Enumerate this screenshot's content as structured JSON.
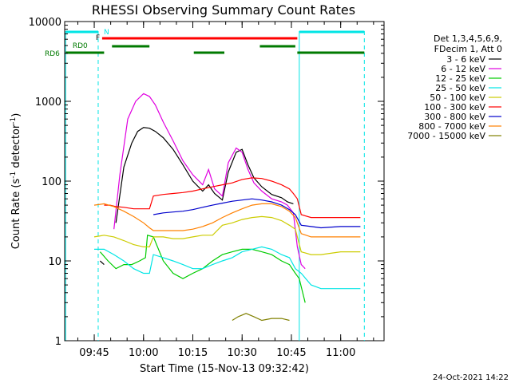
{
  "chart_data": {
    "type": "line",
    "title": "RHESSI Observing Summary Count Rates",
    "xlabel": "Start Time (15-Nov-13 09:32:42)",
    "ylabel_main": "Count Rate (s",
    "ylabel_sup1": "-1",
    "ylabel_mid": " detector",
    "ylabel_sup2": "-1",
    "ylabel_end": ")",
    "y_scale": "log",
    "ylim": [
      1,
      10000
    ],
    "xlim": [
      9.6,
      11.22
    ],
    "x_ticks": [
      {
        "label": "09:45",
        "value": 9.75
      },
      {
        "label": "10:00",
        "value": 10.0
      },
      {
        "label": "10:15",
        "value": 10.25
      },
      {
        "label": "10:30",
        "value": 10.5
      },
      {
        "label": "10:45",
        "value": 10.75
      },
      {
        "label": "11:00",
        "value": 11.0
      }
    ],
    "y_ticks": [
      {
        "label": "1",
        "value": 1
      },
      {
        "label": "10",
        "value": 10
      },
      {
        "label": "100",
        "value": 100
      },
      {
        "label": "1000",
        "value": 1000
      },
      {
        "label": "10000",
        "value": 10000
      }
    ],
    "legend_header": [
      "Det 1,3,4,5,6,9,",
      "FDecim 1, Att 0"
    ],
    "legend_placement": "right",
    "footer_date": "24-Oct-2021 14:22",
    "series": [
      {
        "name": "3 - 6 keV",
        "color": "#000000",
        "x": [
          9.6,
          9.66,
          9.72,
          9.78,
          9.8,
          9.84,
          9.86,
          9.9,
          9.94,
          9.97,
          10.0,
          10.03,
          10.06,
          10.1,
          10.15,
          10.2,
          10.25,
          10.3,
          10.33,
          10.36,
          10.4,
          10.43,
          10.47,
          10.5,
          10.53,
          10.56,
          10.6,
          10.65,
          10.7,
          10.73,
          10.76,
          10.78,
          10.79,
          10.82
        ],
        "y": [
          null,
          null,
          null,
          10,
          9,
          null,
          30,
          150,
          300,
          420,
          470,
          460,
          420,
          350,
          250,
          160,
          100,
          75,
          90,
          70,
          58,
          130,
          230,
          250,
          160,
          110,
          85,
          68,
          62,
          55,
          52,
          null,
          3,
          null
        ]
      },
      {
        "name": "6 - 12 keV",
        "color": "#e000e0",
        "x": [
          9.85,
          9.88,
          9.92,
          9.96,
          10.0,
          10.03,
          10.06,
          10.1,
          10.15,
          10.2,
          10.25,
          10.3,
          10.33,
          10.36,
          10.4,
          10.43,
          10.47,
          10.5,
          10.53,
          10.56,
          10.6,
          10.65,
          10.7,
          10.73,
          10.76,
          10.78,
          10.8,
          10.82
        ],
        "y": [
          25,
          120,
          600,
          1000,
          1250,
          1150,
          900,
          550,
          320,
          180,
          120,
          90,
          140,
          80,
          65,
          170,
          260,
          230,
          140,
          95,
          75,
          60,
          55,
          50,
          40,
          15,
          9,
          8
        ]
      },
      {
        "name": "12 - 25 keV",
        "color": "#00cc00",
        "x": [
          9.6,
          9.65,
          9.72,
          9.78,
          9.82,
          9.86,
          9.9,
          9.94,
          9.98,
          10.01,
          10.02,
          10.05,
          10.1,
          10.15,
          10.2,
          10.25,
          10.3,
          10.35,
          10.4,
          10.45,
          10.5,
          10.55,
          10.6,
          10.65,
          10.7,
          10.74,
          10.77,
          10.79,
          10.82,
          10.85
        ],
        "y": [
          null,
          null,
          null,
          13,
          10,
          8,
          9,
          9,
          10,
          11,
          21,
          20,
          10,
          7,
          6,
          7,
          8,
          10,
          12,
          13,
          14,
          14,
          13,
          12,
          10,
          9,
          7,
          6,
          3,
          null
        ]
      },
      {
        "name": "25 - 50 keV",
        "color": "#00e5e5",
        "x": [
          9.6,
          9.65,
          9.7,
          9.75,
          9.8,
          9.85,
          9.9,
          9.95,
          10.0,
          10.03,
          10.05,
          10.1,
          10.15,
          10.2,
          10.25,
          10.3,
          10.35,
          10.4,
          10.45,
          10.5,
          10.55,
          10.6,
          10.65,
          10.7,
          10.74,
          10.77,
          10.8,
          10.85,
          10.9,
          10.95,
          11.0,
          11.1
        ],
        "y": [
          null,
          null,
          null,
          14,
          14,
          12,
          10,
          8,
          7,
          7,
          12,
          11,
          10,
          9,
          8,
          8,
          9,
          10,
          11,
          13,
          14,
          15,
          14,
          12,
          11,
          8,
          7,
          5,
          4.5,
          4.5,
          4.5,
          4.5
        ]
      },
      {
        "name": "50 - 100 keV",
        "color": "#cccc00",
        "x": [
          9.6,
          9.65,
          9.7,
          9.75,
          9.8,
          9.85,
          9.9,
          9.95,
          10.0,
          10.03,
          10.05,
          10.1,
          10.15,
          10.2,
          10.25,
          10.3,
          10.35,
          10.4,
          10.45,
          10.5,
          10.55,
          10.6,
          10.65,
          10.7,
          10.74,
          10.77,
          10.8,
          10.85,
          10.9,
          11.0,
          11.1
        ],
        "y": [
          null,
          null,
          null,
          20,
          21,
          20,
          18,
          16,
          15,
          15,
          20,
          20,
          19,
          19,
          20,
          21,
          21,
          28,
          30,
          33,
          35,
          36,
          35,
          32,
          28,
          25,
          13,
          12,
          12,
          13,
          13
        ]
      },
      {
        "name": "100 - 300 keV",
        "color": "#ff0000",
        "x": [
          9.6,
          9.63,
          9.66,
          9.7,
          9.73,
          9.76,
          9.79,
          9.8,
          9.83,
          9.86,
          9.9,
          9.95,
          10.0,
          10.03,
          10.05,
          10.1,
          10.15,
          10.2,
          10.25,
          10.3,
          10.35,
          10.4,
          10.45,
          10.5,
          10.55,
          10.6,
          10.65,
          10.7,
          10.74,
          10.76,
          10.78,
          10.8,
          10.85,
          10.9,
          11.0,
          11.1
        ],
        "y": [
          null,
          null,
          null,
          null,
          null,
          null,
          null,
          50,
          50,
          48,
          47,
          45,
          45,
          45,
          65,
          68,
          70,
          72,
          75,
          80,
          85,
          90,
          95,
          105,
          110,
          108,
          100,
          90,
          80,
          70,
          60,
          38,
          35,
          35,
          35,
          35
        ]
      },
      {
        "name": "300 - 800 keV",
        "color": "#0000cc",
        "x": [
          9.6,
          9.65,
          9.7,
          9.75,
          9.8,
          9.85,
          9.9,
          9.95,
          10.0,
          10.03,
          10.05,
          10.1,
          10.15,
          10.2,
          10.25,
          10.3,
          10.35,
          10.4,
          10.45,
          10.5,
          10.55,
          10.6,
          10.65,
          10.7,
          10.74,
          10.77,
          10.8,
          10.85,
          10.9,
          11.0,
          11.1
        ],
        "y": [
          null,
          null,
          null,
          null,
          null,
          null,
          null,
          null,
          null,
          null,
          38,
          40,
          41,
          42,
          44,
          47,
          50,
          53,
          56,
          58,
          60,
          58,
          55,
          50,
          44,
          38,
          28,
          27,
          26,
          27,
          27
        ]
      },
      {
        "name": "800 - 7000 keV",
        "color": "#ff8000",
        "x": [
          9.6,
          9.65,
          9.7,
          9.75,
          9.8,
          9.85,
          9.9,
          9.95,
          10.0,
          10.03,
          10.05,
          10.1,
          10.15,
          10.2,
          10.25,
          10.3,
          10.35,
          10.4,
          10.45,
          10.5,
          10.55,
          10.6,
          10.65,
          10.7,
          10.74,
          10.77,
          10.8,
          10.85,
          10.9,
          11.0,
          11.1
        ],
        "y": [
          null,
          null,
          null,
          50,
          52,
          48,
          42,
          36,
          30,
          26,
          24,
          24,
          24,
          24,
          25,
          27,
          30,
          35,
          40,
          45,
          50,
          52,
          52,
          48,
          42,
          35,
          22,
          20,
          20,
          20,
          20
        ]
      },
      {
        "name": "7000 - 15000 keV",
        "color": "#808000",
        "x": [
          9.6,
          9.65,
          9.7,
          9.75,
          9.8,
          9.85,
          10.0,
          10.2,
          10.4,
          10.45,
          10.48,
          10.52,
          10.56,
          10.6,
          10.65,
          10.7,
          10.74,
          10.76
        ],
        "y": [
          null,
          null,
          null,
          null,
          null,
          null,
          null,
          null,
          null,
          1.8,
          2.0,
          2.2,
          2.0,
          1.8,
          1.9,
          1.9,
          1.8,
          null
        ]
      }
    ],
    "annotations": {
      "N_label": "N",
      "F_label": "F",
      "RD0_label": "RD0",
      "RD6_label": "RD6"
    }
  }
}
